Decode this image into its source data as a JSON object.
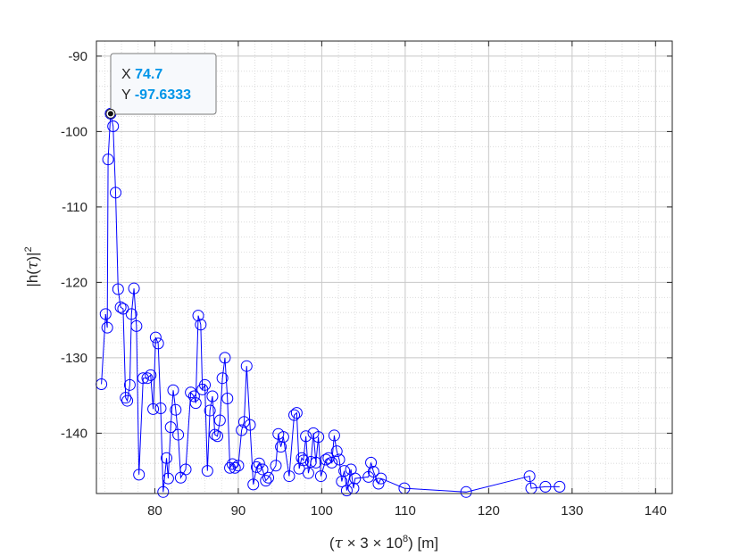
{
  "chart_data": {
    "type": "line",
    "xlabel": {
      "prefix": "(",
      "tau": "τ",
      "mid": " × 3 × 10",
      "sup": "8",
      "suffix": ") [m]"
    },
    "ylabel": {
      "main": "|h(",
      "tau": "τ",
      "close": ")|",
      "sup": "2"
    },
    "xlim": [
      73,
      142
    ],
    "ylim": [
      -148,
      -88
    ],
    "xticks": [
      80,
      90,
      100,
      110,
      120,
      130,
      140
    ],
    "yticks": [
      -90,
      -100,
      -110,
      -120,
      -130,
      -140
    ],
    "grid": true,
    "minor_grid": true,
    "line_color": "#0000ff",
    "marker": "circle",
    "series": [
      {
        "x": [
          73.6,
          74.1,
          74.3,
          74.4,
          74.7,
          75.0,
          75.3,
          75.6,
          75.9,
          76.2,
          76.5,
          76.7,
          77.0,
          77.2,
          77.5,
          77.8,
          78.1,
          78.6,
          79.1,
          79.5,
          79.8,
          80.1,
          80.4,
          80.7,
          81.0,
          81.4,
          81.6,
          81.9,
          82.2,
          82.5,
          82.8,
          83.1,
          83.7,
          84.3,
          84.7,
          84.9,
          85.2,
          85.5,
          85.7,
          86.0,
          86.3,
          86.6,
          86.9,
          87.2,
          87.5,
          87.8,
          88.1,
          88.4,
          88.7,
          89.0,
          89.3,
          89.6,
          90.0,
          90.4,
          90.7,
          91.0,
          91.4,
          91.8,
          92.2,
          92.5,
          92.9,
          93.3,
          93.6,
          94.5,
          94.8,
          95.1,
          95.4,
          96.1,
          96.7,
          97.0,
          97.3,
          97.6,
          97.8,
          98.1,
          98.4,
          98.7,
          99.0,
          99.3,
          99.6,
          99.9,
          100.5,
          100.8,
          101.2,
          101.5,
          101.8,
          102.1,
          102.4,
          102.7,
          103.0,
          103.5,
          103.8,
          104.0,
          105.6,
          105.9,
          106.2,
          106.8,
          107.1,
          109.9,
          117.3,
          124.9,
          125.1,
          126.8,
          128.5
        ],
        "y": [
          -133.5,
          -124.2,
          -126.0,
          -103.7,
          -97.6333,
          -99.3,
          -108.1,
          -120.9,
          -123.3,
          -123.5,
          -135.3,
          -135.7,
          -133.6,
          -124.2,
          -120.8,
          -125.8,
          -145.5,
          -132.7,
          -132.7,
          -132.3,
          -136.8,
          -127.3,
          -128.1,
          -136.7,
          -147.8,
          -143.3,
          -146.0,
          -139.2,
          -134.3,
          -136.9,
          -140.2,
          -145.9,
          -144.8,
          -134.6,
          -135.1,
          -136.0,
          -124.4,
          -125.6,
          -134.2,
          -133.6,
          -145.0,
          -137.0,
          -135.1,
          -140.2,
          -140.4,
          -138.3,
          -132.7,
          -130.0,
          -135.4,
          -144.6,
          -144.1,
          -144.6,
          -144.3,
          -139.6,
          -138.5,
          -131.1,
          -138.9,
          -146.8,
          -144.5,
          -144.0,
          -144.8,
          -146.3,
          -145.9,
          -144.3,
          -140.1,
          -141.8,
          -140.5,
          -145.7,
          -137.6,
          -137.3,
          -144.7,
          -143.3,
          -143.6,
          -140.4,
          -145.3,
          -143.8,
          -140.0,
          -143.9,
          -140.5,
          -145.7,
          -143.5,
          -143.3,
          -143.9,
          -140.3,
          -142.4,
          -143.5,
          -146.4,
          -145.0,
          -147.6,
          -144.8,
          -147.3,
          -146.0,
          -145.8,
          -143.9,
          -145.1,
          -146.7,
          -146.0,
          -147.3,
          -147.8,
          -145.7,
          -147.3,
          -147.1,
          -147.1
        ]
      }
    ],
    "datatip": {
      "x_label": "X",
      "x_value": "74.7",
      "y_label": "Y",
      "y_value": "-97.6333",
      "value_color": "#0095e8"
    }
  }
}
